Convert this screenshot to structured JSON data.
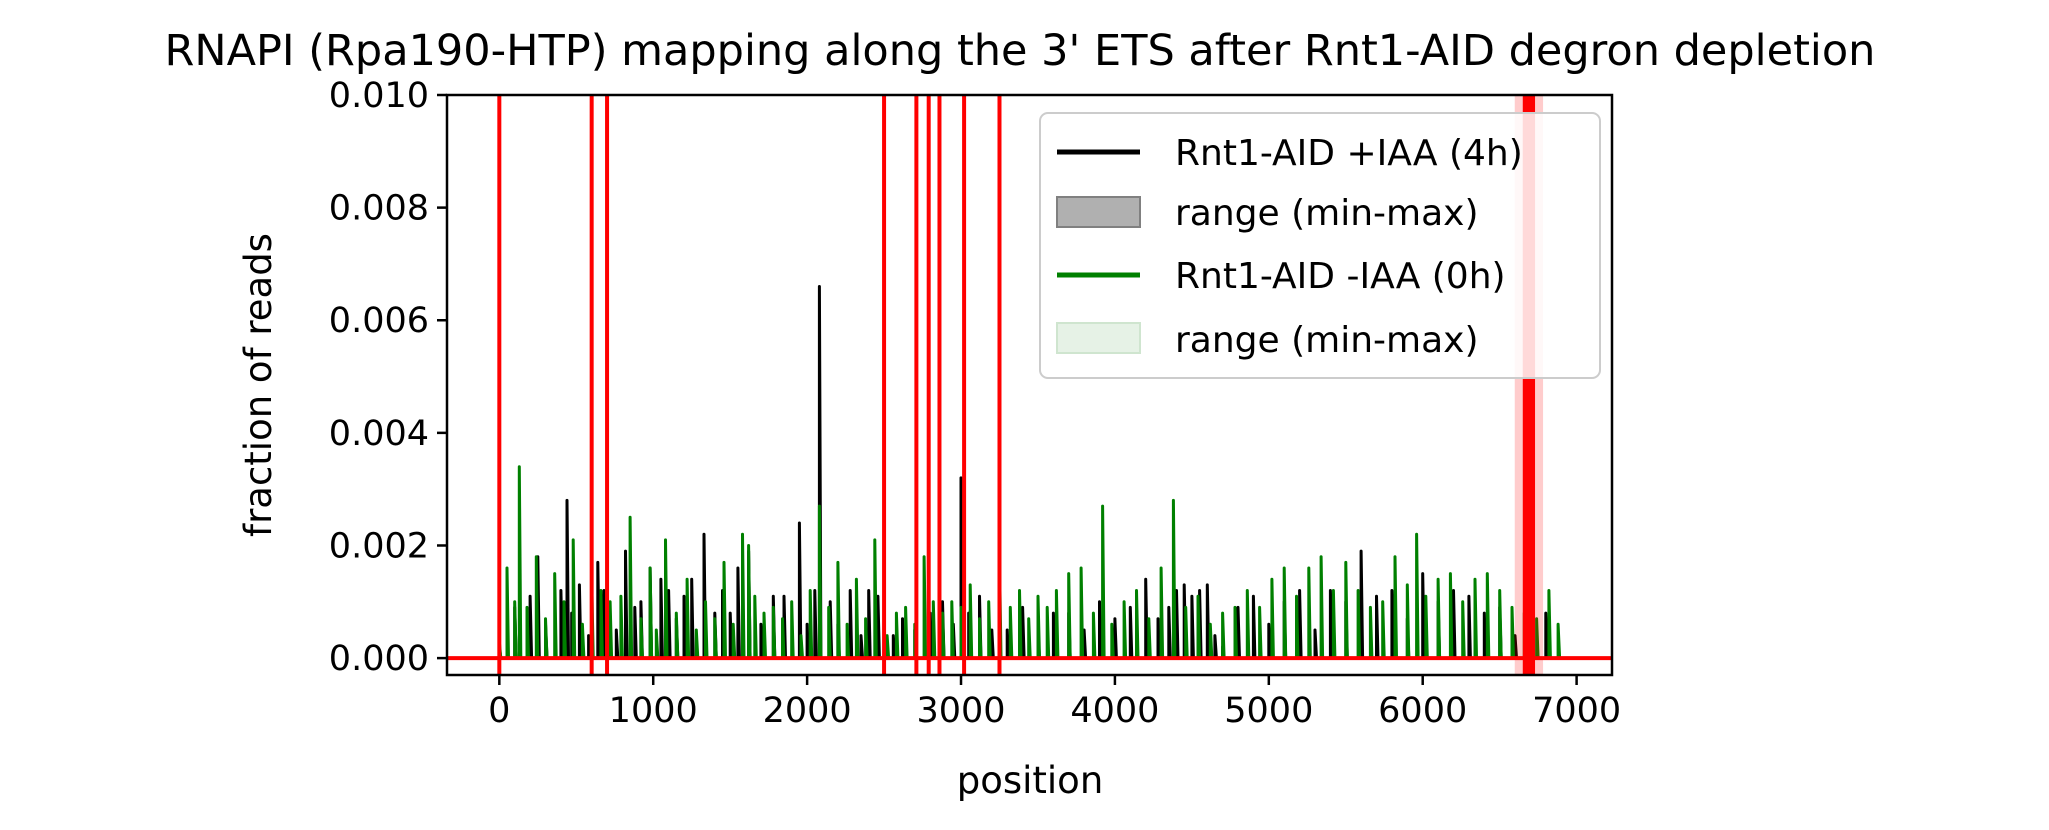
{
  "chart_data": {
    "type": "line",
    "title": "RNAPI (Rpa190-HTP) mapping along the 3' ETS after Rnt1-AID degron depletion",
    "xlabel": "position",
    "ylabel": "fraction of reads",
    "xlim": [
      -340,
      7230
    ],
    "ylim": [
      -0.0003,
      0.01
    ],
    "x_ticks": [
      0,
      1000,
      2000,
      3000,
      4000,
      5000,
      6000,
      7000
    ],
    "x_tick_labels": [
      "0",
      "1000",
      "2000",
      "3000",
      "4000",
      "5000",
      "6000",
      "7000"
    ],
    "y_ticks": [
      0,
      0.002,
      0.004,
      0.006,
      0.008,
      0.01
    ],
    "y_tick_labels": [
      "0.000",
      "0.002",
      "0.004",
      "0.006",
      "0.008",
      "0.010"
    ],
    "grid": false,
    "legend_position": "upper-right",
    "legend": [
      {
        "label": "Rnt1-AID +IAA (4h)",
        "kind": "line",
        "color": "#000000"
      },
      {
        "label": "range (min-max)",
        "kind": "patch",
        "color": "#808080"
      },
      {
        "label": "Rnt1-AID -IAA (0h)",
        "kind": "line",
        "color": "#008000"
      },
      {
        "label": "range (min-max)",
        "kind": "patch",
        "color": "#d8ecd8"
      }
    ],
    "baseline": {
      "color": "#ff0000",
      "y": 0
    },
    "vertical_markers": {
      "color": "#ff0000",
      "x": [
        0,
        600,
        700,
        2500,
        2710,
        2790,
        2860,
        3020,
        3250
      ],
      "band": [
        6650,
        6730
      ]
    },
    "series": [
      {
        "name": "Rnt1-AID +IAA (4h)",
        "color": "#000000",
        "x": [
          0,
          100,
          200,
          250,
          300,
          400,
          440,
          470,
          520,
          580,
          640,
          680,
          760,
          820,
          880,
          920,
          980,
          1050,
          1100,
          1150,
          1200,
          1250,
          1330,
          1400,
          1450,
          1500,
          1550,
          1620,
          1700,
          1780,
          1850,
          1950,
          2000,
          2050,
          2080,
          2150,
          2200,
          2280,
          2350,
          2400,
          2460,
          2560,
          2620,
          2700,
          2800,
          2880,
          2950,
          3000,
          3050,
          3120,
          3200,
          3300,
          3400,
          3500,
          3600,
          3700,
          3800,
          3900,
          4000,
          4100,
          4200,
          4280,
          4350,
          4400,
          4450,
          4500,
          4550,
          4600,
          4650,
          4700,
          4800,
          4900,
          5000,
          5100,
          5200,
          5300,
          5400,
          5500,
          5600,
          5700,
          5800,
          5900,
          6000,
          6100,
          6200,
          6300,
          6400,
          6500,
          6600,
          6700,
          6800,
          6900
        ],
        "y": [
          0.0002,
          0.0009,
          0.0011,
          0.0018,
          0.0006,
          0.0012,
          0.0028,
          0.0008,
          0.0013,
          0.0004,
          0.0017,
          0.0012,
          0.0005,
          0.0019,
          0.0009,
          0.001,
          0.0016,
          0.0014,
          0.0012,
          0.0007,
          0.0011,
          0.0014,
          0.0022,
          0.0008,
          0.0012,
          0.0008,
          0.0016,
          0.0019,
          0.0006,
          0.0011,
          0.0011,
          0.0024,
          0.0006,
          0.0012,
          0.0066,
          0.001,
          0.0006,
          0.0012,
          0.0004,
          0.0012,
          0.0011,
          0.0004,
          0.0007,
          0.0005,
          0.0008,
          0.001,
          0.0006,
          0.0032,
          0.0008,
          0.0011,
          0.0005,
          0.0005,
          0.0009,
          0.0005,
          0.0008,
          0.0008,
          0.0005,
          0.001,
          0.0007,
          0.0009,
          0.0014,
          0.0007,
          0.0009,
          0.0012,
          0.0013,
          0.0011,
          0.0012,
          0.0013,
          0.0004,
          0.0002,
          0.0009,
          0.0011,
          0.0006,
          0.001,
          0.0012,
          0.0005,
          0.0012,
          0.001,
          0.0019,
          0.0011,
          0.0012,
          0.0007,
          0.0015,
          0.001,
          0.0012,
          0.0011,
          0.0008,
          0.0009,
          0.0004,
          0.0002,
          0.0008,
          0.0
        ]
      },
      {
        "name": "Rnt1-AID -IAA (0h)",
        "color": "#008000",
        "x": [
          0,
          50,
          100,
          130,
          180,
          240,
          300,
          360,
          420,
          480,
          540,
          600,
          660,
          720,
          790,
          850,
          920,
          980,
          1020,
          1080,
          1150,
          1220,
          1280,
          1340,
          1400,
          1460,
          1520,
          1580,
          1620,
          1660,
          1720,
          1780,
          1840,
          1900,
          1960,
          2020,
          2080,
          2140,
          2200,
          2260,
          2320,
          2380,
          2440,
          2520,
          2580,
          2640,
          2700,
          2760,
          2820,
          2880,
          2940,
          3000,
          3060,
          3120,
          3180,
          3250,
          3320,
          3380,
          3440,
          3500,
          3560,
          3620,
          3700,
          3780,
          3860,
          3920,
          3980,
          4060,
          4140,
          4220,
          4300,
          4380,
          4460,
          4540,
          4620,
          4700,
          4780,
          4860,
          4940,
          5020,
          5100,
          5180,
          5260,
          5340,
          5420,
          5500,
          5580,
          5660,
          5740,
          5820,
          5900,
          5960,
          6020,
          6100,
          6180,
          6260,
          6340,
          6420,
          6500,
          6580,
          6660,
          6740,
          6820,
          6880
        ],
        "y": [
          0.0003,
          0.0016,
          0.001,
          0.0034,
          0.0009,
          0.0018,
          0.0007,
          0.0015,
          0.001,
          0.0021,
          0.0006,
          0.0014,
          0.0012,
          0.001,
          0.0011,
          0.0025,
          0.0007,
          0.0016,
          0.0005,
          0.0021,
          0.0008,
          0.0014,
          0.0005,
          0.001,
          0.0007,
          0.0017,
          0.0006,
          0.0022,
          0.002,
          0.0011,
          0.0008,
          0.0009,
          0.0007,
          0.001,
          0.0004,
          0.0012,
          0.0027,
          0.0009,
          0.0017,
          0.0006,
          0.0014,
          0.0007,
          0.0021,
          0.0004,
          0.0008,
          0.0009,
          0.0006,
          0.0018,
          0.001,
          0.0008,
          0.001,
          0.0009,
          0.0013,
          0.0007,
          0.001,
          0.0018,
          0.0009,
          0.0012,
          0.0007,
          0.0011,
          0.0009,
          0.0012,
          0.0015,
          0.0016,
          0.0008,
          0.0027,
          0.0006,
          0.001,
          0.0012,
          0.0007,
          0.0016,
          0.0028,
          0.0009,
          0.0011,
          0.0006,
          0.0008,
          0.0009,
          0.0012,
          0.0009,
          0.0014,
          0.0016,
          0.0011,
          0.0016,
          0.0018,
          0.0012,
          0.0017,
          0.0012,
          0.0009,
          0.001,
          0.0018,
          0.0013,
          0.0022,
          0.0011,
          0.0014,
          0.0015,
          0.001,
          0.0014,
          0.0015,
          0.0012,
          0.0009,
          0.0008,
          0.0007,
          0.0012,
          0.0006
        ]
      }
    ]
  }
}
